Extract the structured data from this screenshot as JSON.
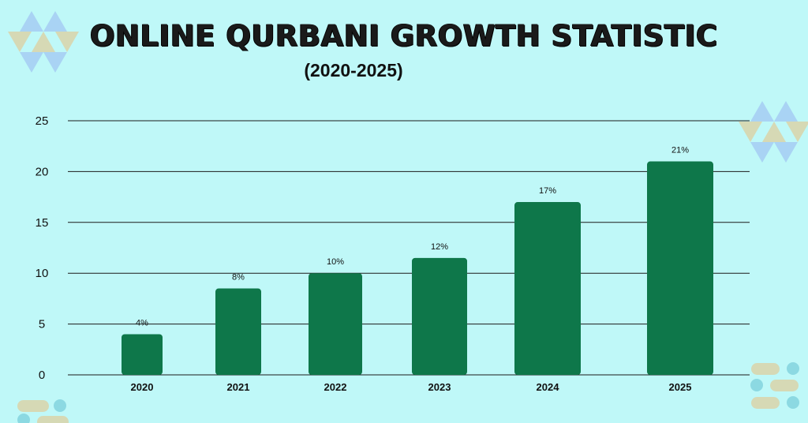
{
  "chart_data": {
    "type": "bar",
    "title": "ONLINE QURBANI GROWTH STATISTIC",
    "subtitle": "(2020-2025)",
    "xlabel": "",
    "ylabel": "",
    "categories": [
      "2020",
      "2021",
      "2022",
      "2023",
      "2024",
      "2025"
    ],
    "values": [
      4,
      8.5,
      10,
      11.5,
      17,
      21
    ],
    "data_labels": [
      "4%",
      "8%",
      "10%",
      "12%",
      "17%",
      "21%"
    ],
    "ylim": [
      0,
      25
    ],
    "yticks": [
      "0",
      "5",
      "10",
      "15",
      "20",
      "25"
    ],
    "grid": true,
    "legend": "none"
  },
  "colors": {
    "background": "#bff8f8",
    "bar": "#0e774a",
    "gridline": "#1b1b1b",
    "text": "#111111",
    "deco_blue": "#a9d3f4",
    "deco_sand": "#d6d9b5",
    "deco_teal": "#8cd9e2"
  }
}
